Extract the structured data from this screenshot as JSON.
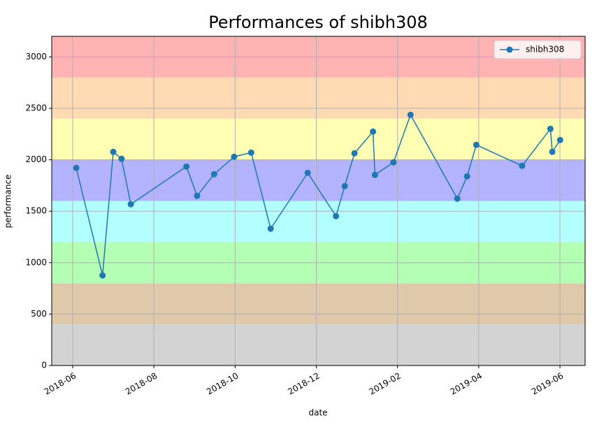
{
  "chart_data": {
    "type": "line",
    "title": "Performances of shibh308",
    "xlabel": "date",
    "ylabel": "performance",
    "x": [
      2018.424,
      2018.478,
      2018.5,
      2018.517,
      2018.536,
      2018.65,
      2018.672,
      2018.707,
      2018.748,
      2018.783,
      2018.823,
      2018.899,
      2018.957,
      2018.975,
      2018.995,
      2019.033,
      2019.037,
      2019.075,
      2019.11,
      2019.206,
      2019.226,
      2019.245,
      2019.339,
      2019.397,
      2019.401,
      2019.417
    ],
    "series": [
      {
        "name": "shibh308",
        "color": "#1f77b4",
        "values": [
          1921,
          876,
          2077,
          2009,
          1568,
          1934,
          1649,
          1860,
          2029,
          2070,
          1330,
          1873,
          1452,
          1744,
          2063,
          2274,
          1853,
          1975,
          2437,
          1622,
          1839,
          2145,
          1941,
          2301,
          2077,
          2192
        ]
      }
    ],
    "xlim": [
      2018.3737,
      2019.4683
    ],
    "xticks": [
      {
        "value": 2018.4167,
        "label": "2018-06"
      },
      {
        "value": 2018.5833,
        "label": "2018-08"
      },
      {
        "value": 2018.75,
        "label": "2018-10"
      },
      {
        "value": 2018.9167,
        "label": "2018-12"
      },
      {
        "value": 2019.0833,
        "label": "2019-02"
      },
      {
        "value": 2019.25,
        "label": "2019-04"
      },
      {
        "value": 2019.4167,
        "label": "2019-06"
      }
    ],
    "ylim": [
      0,
      3200
    ],
    "yticks": [
      0,
      500,
      1000,
      1500,
      2000,
      2500,
      3000
    ],
    "bands": [
      {
        "from": 0,
        "to": 400,
        "color": "#d3d3d3"
      },
      {
        "from": 400,
        "to": 800,
        "color": "#e0c8aa"
      },
      {
        "from": 800,
        "to": 1200,
        "color": "#b3ffb3"
      },
      {
        "from": 1200,
        "to": 1600,
        "color": "#b3ffff"
      },
      {
        "from": 1600,
        "to": 2000,
        "color": "#b3b3ff"
      },
      {
        "from": 2000,
        "to": 2400,
        "color": "#ffffb3"
      },
      {
        "from": 2400,
        "to": 2800,
        "color": "#ffdab3"
      },
      {
        "from": 2800,
        "to": 3200,
        "color": "#ffb3b3"
      }
    ],
    "grid": true,
    "legend": "upper right"
  }
}
